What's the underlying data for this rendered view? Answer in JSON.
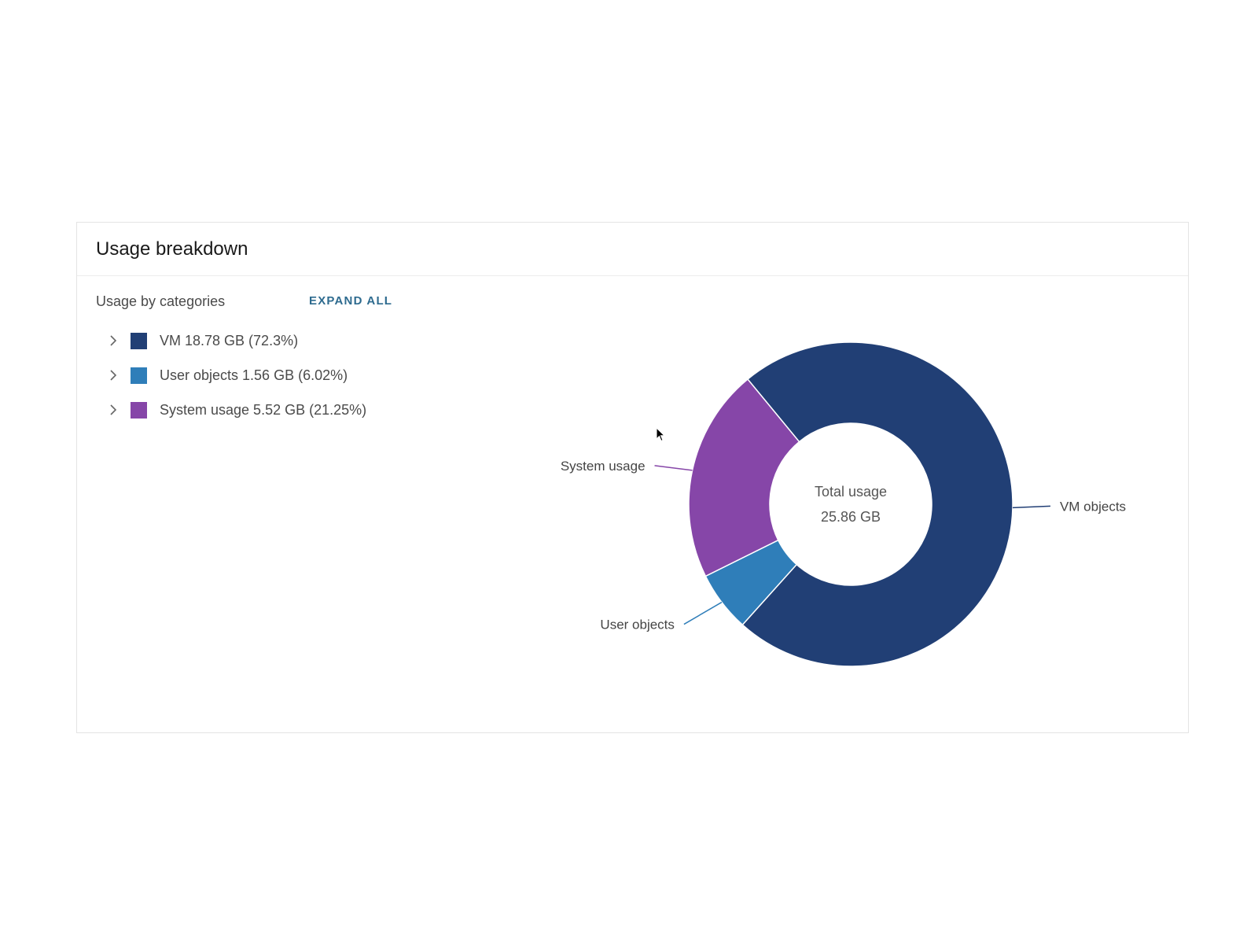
{
  "card": {
    "title": "Usage breakdown"
  },
  "legend": {
    "title": "Usage by categories",
    "expand_all_label": "EXPAND ALL",
    "items": [
      {
        "label": "VM 18.78 GB (72.3%)",
        "color": "#213f75",
        "icon": "chevron-right-icon"
      },
      {
        "label": "User objects 1.56 GB (6.02%)",
        "color": "#2f7eb9",
        "icon": "chevron-right-icon"
      },
      {
        "label": "System usage 5.52 GB (21.25%)",
        "color": "#8646a8",
        "icon": "chevron-right-icon"
      }
    ]
  },
  "chart_data": {
    "type": "pie",
    "variant": "donut",
    "unit": "GB",
    "slices": [
      {
        "name": "VM objects",
        "value": 18.78,
        "percent": 72.3,
        "color": "#213f75"
      },
      {
        "name": "User objects",
        "value": 1.56,
        "percent": 6.02,
        "color": "#2f7eb9"
      },
      {
        "name": "System usage",
        "value": 5.52,
        "percent": 21.25,
        "color": "#8646a8"
      }
    ],
    "center_label": "Total usage",
    "center_value": "25.86 GB",
    "legend_placement": "left"
  }
}
